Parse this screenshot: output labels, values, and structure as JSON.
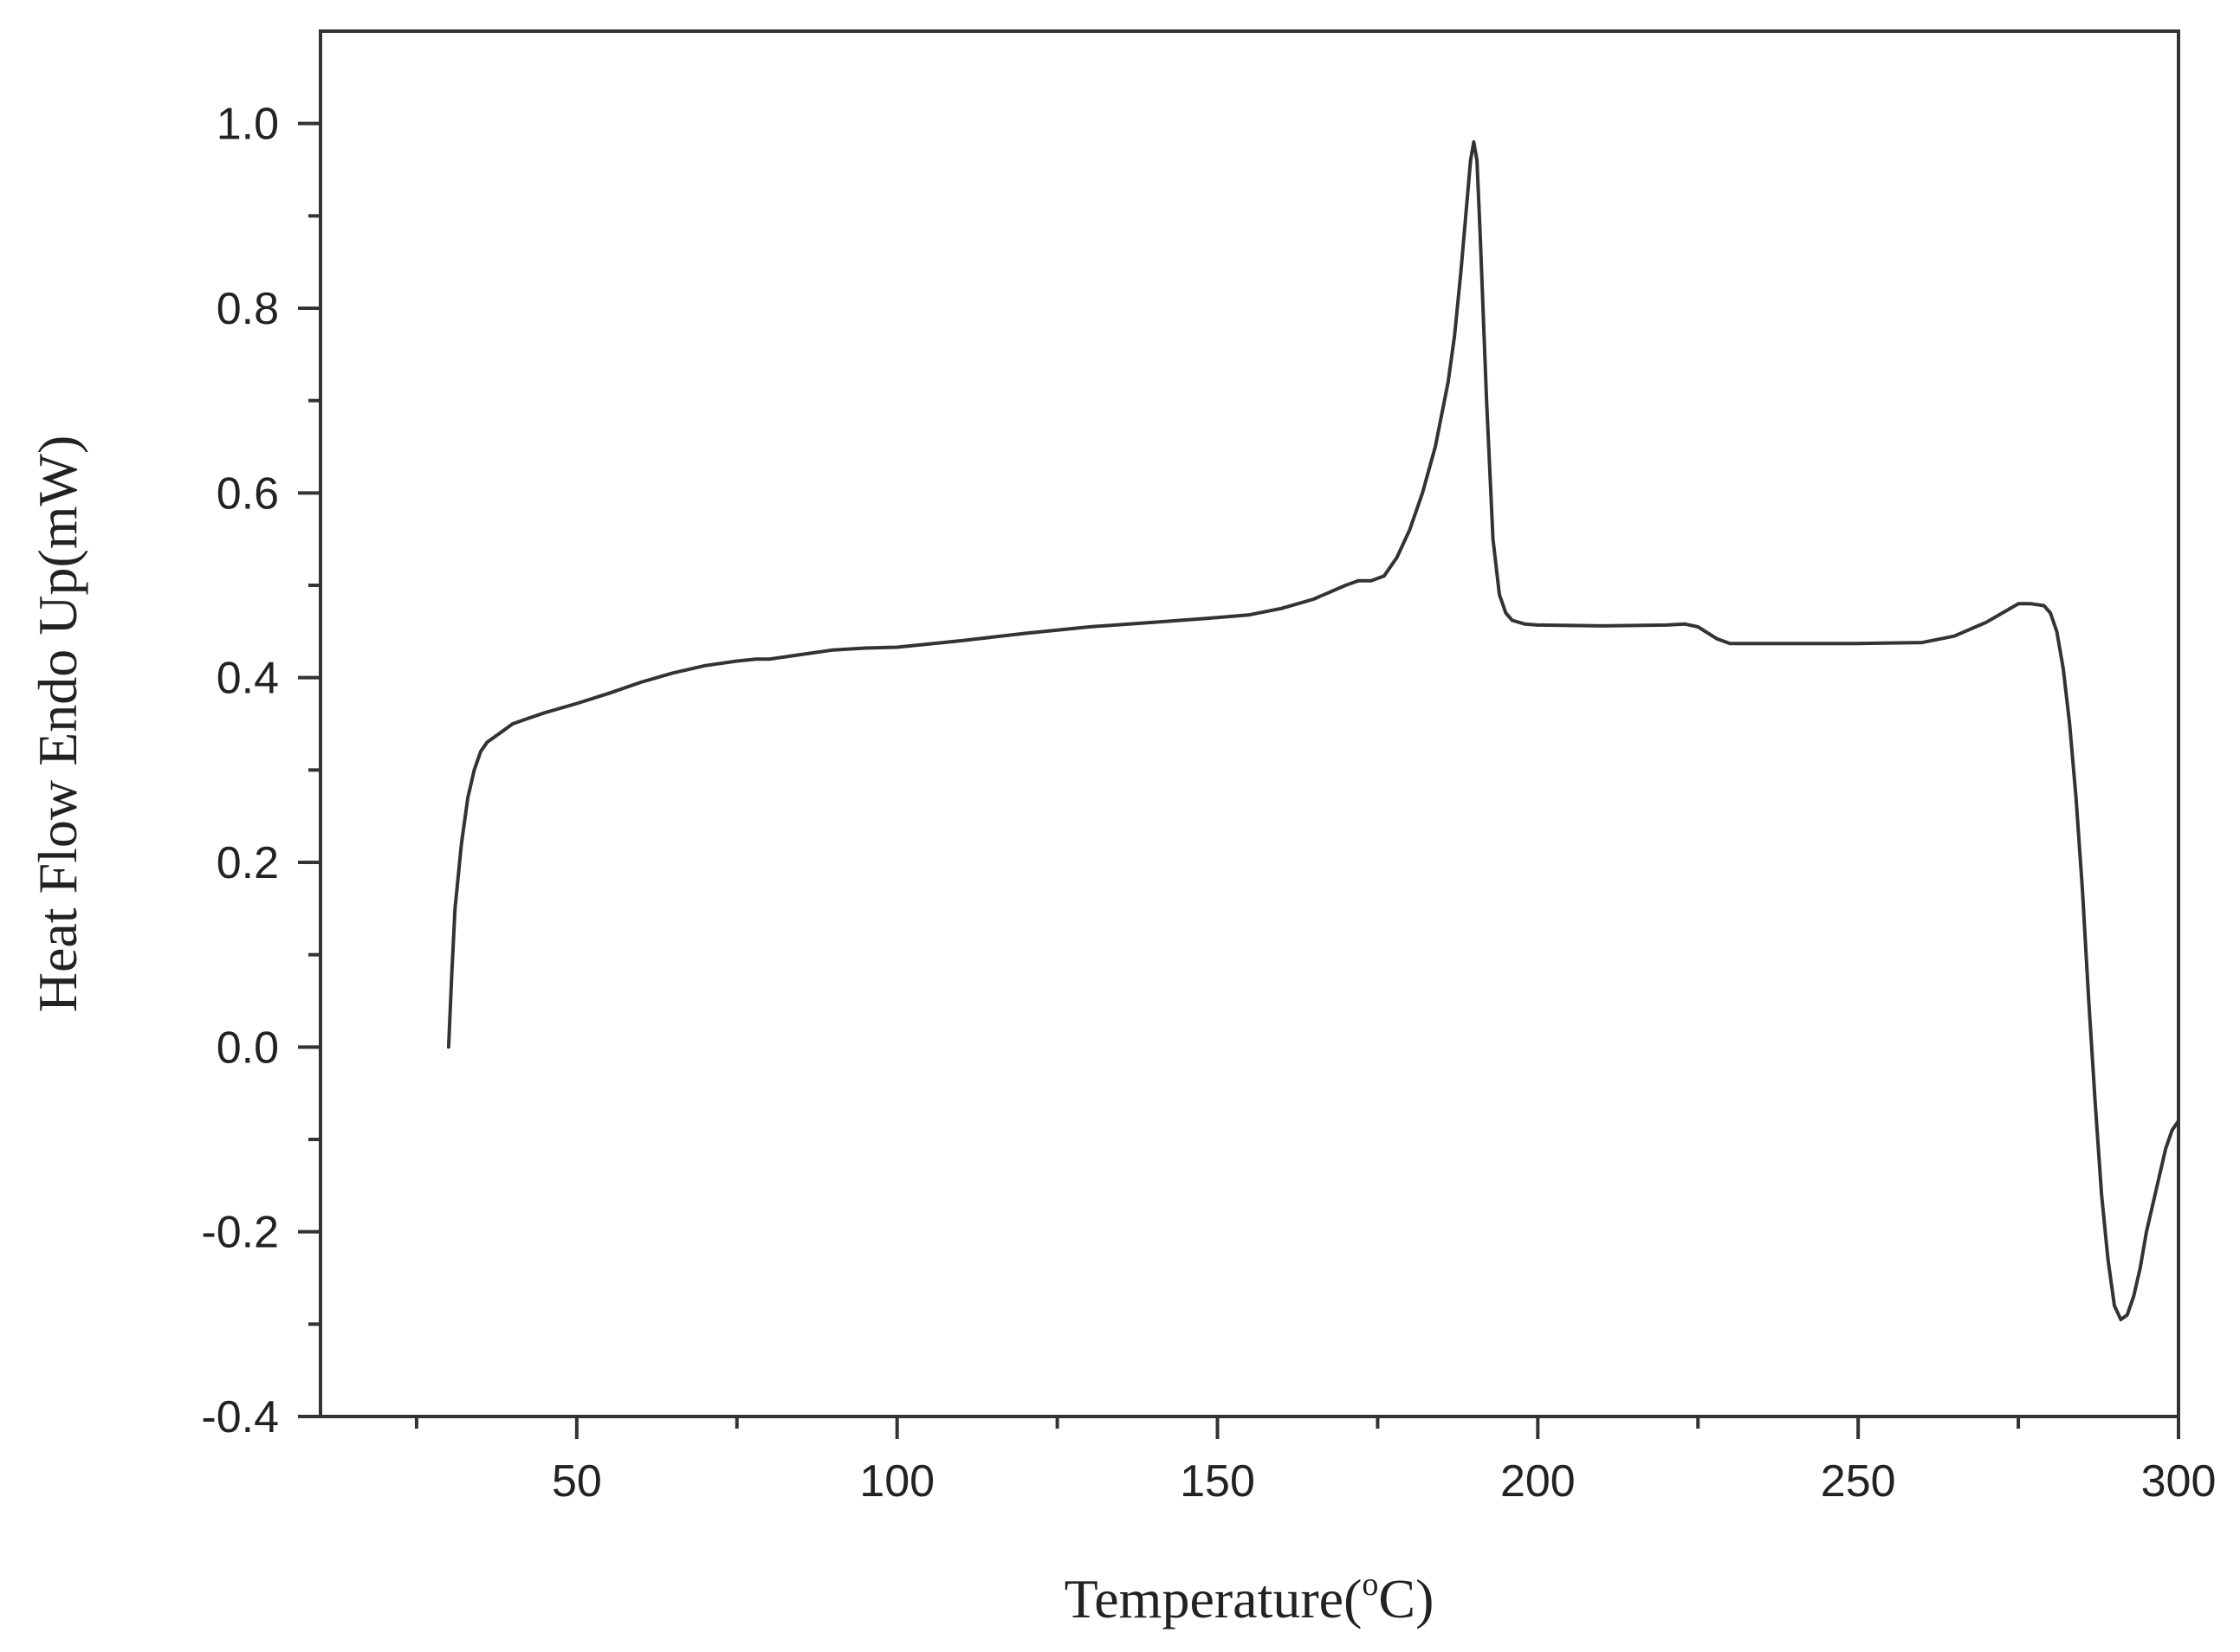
{
  "chart_data": {
    "type": "line",
    "title": "",
    "xlabel_prefix": "Temperature(",
    "xlabel_sup": "o",
    "xlabel_suffix": "C)",
    "ylabel": "Heat Flow Endo Up(mW)",
    "xlim": [
      10,
      300
    ],
    "ylim": [
      -0.4,
      1.1
    ],
    "grid": false,
    "legend": "none",
    "line_color": "#333333",
    "x_ticks": [
      50,
      100,
      150,
      200,
      250,
      300
    ],
    "x_minor_ticks": [
      25,
      75,
      125,
      175,
      225,
      275
    ],
    "x_tick_labels": [
      "50",
      "100",
      "150",
      "200",
      "250",
      "300"
    ],
    "y_ticks": [
      -0.4,
      -0.2,
      0.0,
      0.2,
      0.4,
      0.6,
      0.8,
      1.0
    ],
    "y_minor_ticks": [
      -0.3,
      -0.1,
      0.1,
      0.3,
      0.5,
      0.7,
      0.9
    ],
    "y_tick_labels": [
      "-0.4",
      "-0.2",
      "0.0",
      "0.2",
      "0.4",
      "0.6",
      "0.8",
      "1.0"
    ],
    "series": [
      {
        "x": [
          30,
          30.5,
          31,
          32,
          33,
          34,
          35,
          36,
          38,
          40,
          42,
          45,
          50,
          55,
          60,
          65,
          70,
          75,
          78,
          80,
          85,
          90,
          95,
          100,
          110,
          120,
          130,
          140,
          150,
          155,
          160,
          165,
          170,
          172,
          174,
          176,
          178,
          180,
          182,
          184,
          186,
          187,
          188,
          189,
          189.5,
          190,
          190.5,
          191,
          192,
          193,
          194,
          195,
          196,
          198,
          200,
          210,
          220,
          223,
          225,
          228,
          230,
          240,
          250,
          260,
          265,
          270,
          273,
          275,
          277,
          279,
          280,
          281,
          282,
          283,
          284,
          285,
          286,
          287,
          288,
          289,
          290,
          291,
          292,
          293,
          294,
          295,
          296,
          297,
          298,
          299,
          300
        ],
        "y": [
          0.0,
          0.08,
          0.15,
          0.22,
          0.27,
          0.3,
          0.32,
          0.33,
          0.34,
          0.35,
          0.355,
          0.362,
          0.372,
          0.383,
          0.395,
          0.405,
          0.413,
          0.418,
          0.42,
          0.42,
          0.425,
          0.43,
          0.432,
          0.433,
          0.44,
          0.448,
          0.455,
          0.46,
          0.465,
          0.468,
          0.475,
          0.485,
          0.5,
          0.505,
          0.505,
          0.51,
          0.53,
          0.56,
          0.6,
          0.65,
          0.72,
          0.77,
          0.84,
          0.92,
          0.96,
          0.98,
          0.96,
          0.88,
          0.7,
          0.55,
          0.49,
          0.47,
          0.462,
          0.458,
          0.457,
          0.456,
          0.457,
          0.458,
          0.455,
          0.442,
          0.437,
          0.437,
          0.437,
          0.438,
          0.445,
          0.46,
          0.472,
          0.48,
          0.48,
          0.478,
          0.47,
          0.45,
          0.41,
          0.35,
          0.27,
          0.17,
          0.05,
          -0.06,
          -0.16,
          -0.23,
          -0.28,
          -0.295,
          -0.29,
          -0.27,
          -0.24,
          -0.2,
          -0.17,
          -0.14,
          -0.11,
          -0.09,
          -0.08
        ]
      }
    ]
  }
}
